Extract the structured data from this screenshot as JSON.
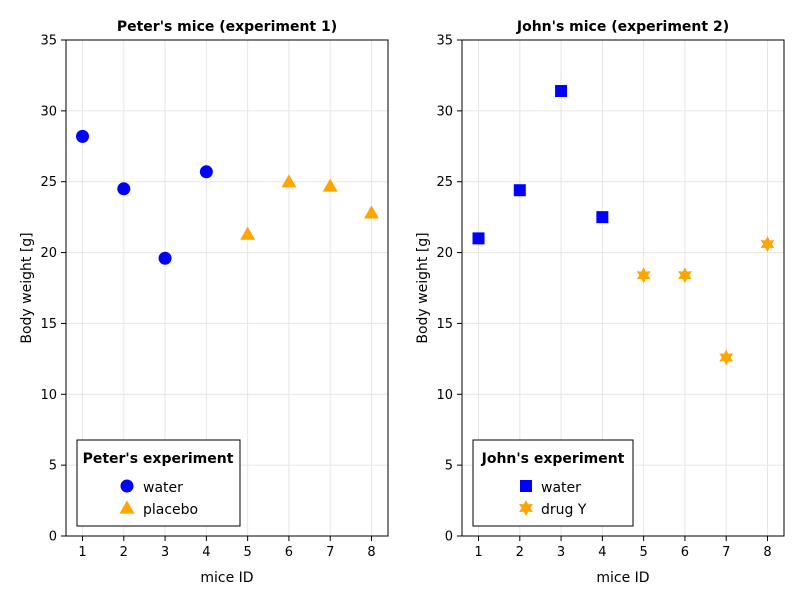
{
  "chart_data": [
    {
      "type": "scatter",
      "title": "Peter's mice (experiment 1)",
      "xlabel": "mice ID",
      "ylabel": "Body weight [g]",
      "xlim": [
        0.6,
        8.4
      ],
      "ylim": [
        0,
        35
      ],
      "xticks": [
        1,
        2,
        3,
        4,
        5,
        6,
        7,
        8
      ],
      "yticks": [
        0,
        5,
        10,
        15,
        20,
        25,
        30,
        35
      ],
      "grid": true,
      "legend": {
        "title": "Peter's experiment",
        "placement": "bottom-left"
      },
      "series": [
        {
          "name": "water",
          "marker": "circle",
          "color": "#0000ff",
          "x": [
            1,
            2,
            3,
            4
          ],
          "y": [
            28.2,
            24.5,
            19.6,
            25.7
          ]
        },
        {
          "name": "placebo",
          "marker": "triangle",
          "color": "#ffa500",
          "x": [
            5,
            6,
            7,
            8
          ],
          "y": [
            21.3,
            25.0,
            24.7,
            22.8
          ]
        }
      ]
    },
    {
      "type": "scatter",
      "title": "John's mice (experiment 2)",
      "xlabel": "mice ID",
      "ylabel": "Body weight [g]",
      "xlim": [
        0.6,
        8.4
      ],
      "ylim": [
        0,
        35
      ],
      "xticks": [
        1,
        2,
        3,
        4,
        5,
        6,
        7,
        8
      ],
      "yticks": [
        0,
        5,
        10,
        15,
        20,
        25,
        30,
        35
      ],
      "grid": true,
      "legend": {
        "title": "John's experiment",
        "placement": "bottom-left"
      },
      "series": [
        {
          "name": "water",
          "marker": "square",
          "color": "#0000ff",
          "x": [
            1,
            2,
            3,
            4
          ],
          "y": [
            21.0,
            24.4,
            31.4,
            22.5
          ]
        },
        {
          "name": "drug Y",
          "marker": "star6",
          "color": "#ffa500",
          "x": [
            5,
            6,
            7,
            8
          ],
          "y": [
            18.4,
            18.4,
            12.6,
            20.6
          ]
        }
      ]
    }
  ]
}
